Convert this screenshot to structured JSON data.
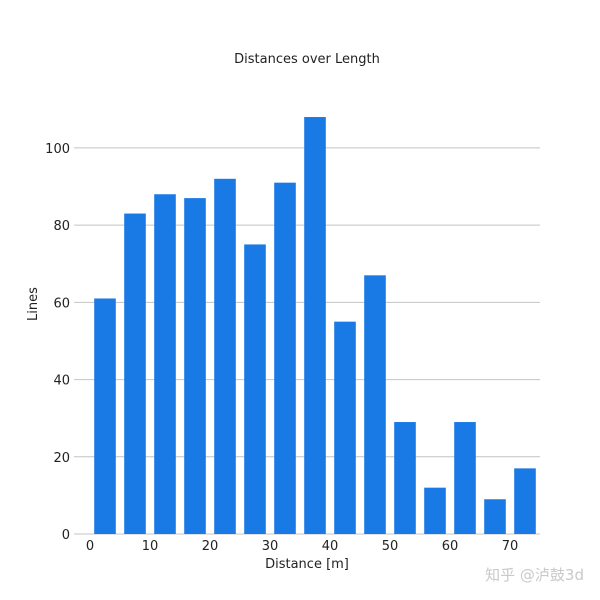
{
  "chart_data": {
    "type": "bar",
    "title": "Distances over Length",
    "xlabel": "Distance [m]",
    "ylabel": "Lines",
    "x": [
      2.5,
      7.5,
      12.5,
      17.5,
      22.5,
      27.5,
      32.5,
      37.5,
      42.5,
      47.5,
      52.5,
      57.5,
      62.5,
      67.5,
      72.5
    ],
    "values": [
      61,
      83,
      88,
      87,
      92,
      75,
      91,
      108,
      55,
      67,
      29,
      12,
      29,
      9,
      17
    ],
    "xlim": [
      0,
      75
    ],
    "ylim": [
      0,
      115
    ],
    "xticks": [
      0,
      10,
      20,
      30,
      40,
      50,
      60,
      70
    ],
    "xtick_labels": [
      "0",
      "10",
      "20",
      "30",
      "40",
      "50",
      "60",
      "70"
    ],
    "yticks": [
      0,
      20,
      40,
      60,
      80,
      100
    ],
    "ytick_labels": [
      "0",
      "20",
      "40",
      "60",
      "80",
      "100"
    ],
    "grid": "horizontal",
    "bar_color": "#1a7ae5",
    "grid_color": "#c4c4c4"
  },
  "watermark": "知乎 @泸鼓3d"
}
